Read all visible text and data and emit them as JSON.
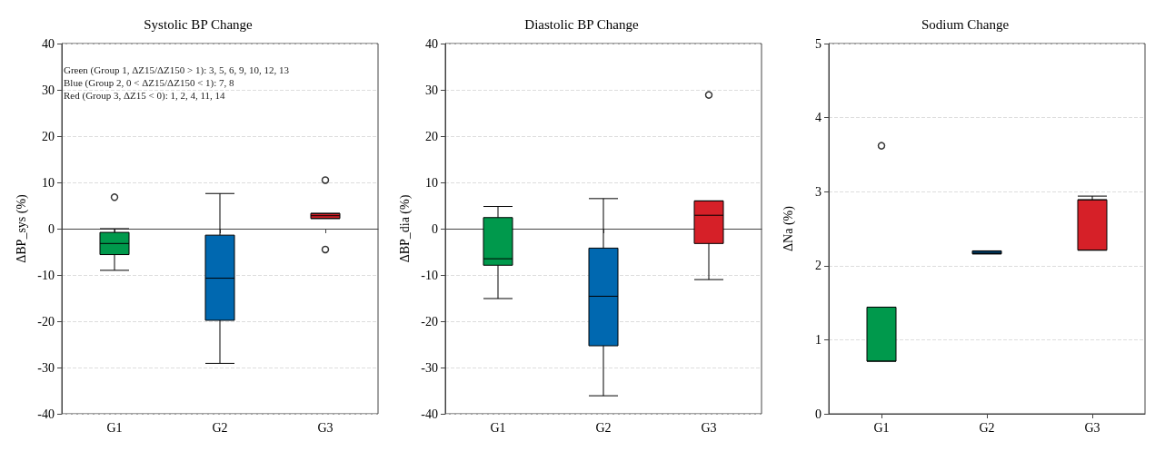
{
  "chart_data": [
    {
      "type": "box",
      "title": "Systolic BP Change",
      "ylabel": "ΔBP_sys (%)",
      "categories": [
        "G1",
        "G2",
        "G3"
      ],
      "colors": [
        "#00994c",
        "#0068b0",
        "#d62028"
      ],
      "ylim": [
        -40,
        40
      ],
      "yticks": [
        -40,
        -30,
        -20,
        -10,
        0,
        10,
        20,
        30,
        40
      ],
      "grid": "y",
      "annotations": [
        "Green (Group 1, ΔZ15/ΔZ150 > 1): 3, 5, 6, 9, 10, 12, 13",
        "Blue (Group 2, 0 < ΔZ15/ΔZ150 < 1): 7, 8",
        "Red (Group 3, ΔZ15 < 0): 1, 2, 4, 11, 14"
      ],
      "boxes": [
        {
          "low": -9.0,
          "q1": -5.6,
          "median": -3.2,
          "q3": -0.8,
          "high": 0,
          "outliers": [
            6.8
          ]
        },
        {
          "low": -29.1,
          "q1": -19.8,
          "median": -10.7,
          "q3": -1.4,
          "high": 7.6
        },
        {
          "low": 2.2,
          "q1": 2.2,
          "median": 2.8,
          "q3": 3.3,
          "high": 3.3,
          "outliers": [
            10.5,
            -4.5
          ]
        }
      ]
    },
    {
      "type": "box",
      "title": "Diastolic BP Change",
      "ylabel": "ΔBP_dia (%)",
      "categories": [
        "G1",
        "G2",
        "G3"
      ],
      "colors": [
        "#00994c",
        "#0068b0",
        "#d62028"
      ],
      "ylim": [
        -40,
        40
      ],
      "yticks": [
        -40,
        -30,
        -20,
        -10,
        0,
        10,
        20,
        30,
        40
      ],
      "grid": "y",
      "boxes": [
        {
          "low": -15.1,
          "q1": -7.9,
          "median": -6.5,
          "q3": 2.4,
          "high": 4.8
        },
        {
          "low": -36.1,
          "q1": -25.3,
          "median": -14.6,
          "q3": -4.2,
          "high": 6.5
        },
        {
          "low": -11.0,
          "q1": -3.2,
          "median": 2.9,
          "q3": 6.0,
          "high": 6.0,
          "outliers": [
            28.9
          ]
        }
      ]
    },
    {
      "type": "box",
      "title": "Sodium Change",
      "ylabel": "ΔNa (%)",
      "categories": [
        "G1",
        "G2",
        "G3"
      ],
      "colors": [
        "#00994c",
        "#0068b0",
        "#d62028"
      ],
      "ylim": [
        0,
        5
      ],
      "yticks": [
        0,
        1,
        2,
        3,
        4,
        5
      ],
      "grid": "y",
      "boxes": [
        {
          "low": 0.71,
          "q1": 0.71,
          "median": 1.44,
          "q3": 1.44,
          "high": 1.44,
          "outliers": [
            3.62
          ]
        },
        {
          "low": 2.16,
          "q1": 2.16,
          "median": 2.18,
          "q3": 2.2,
          "high": 2.2
        },
        {
          "low": 2.21,
          "q1": 2.21,
          "median": 2.89,
          "q3": 2.89,
          "high": 2.94
        }
      ]
    }
  ]
}
